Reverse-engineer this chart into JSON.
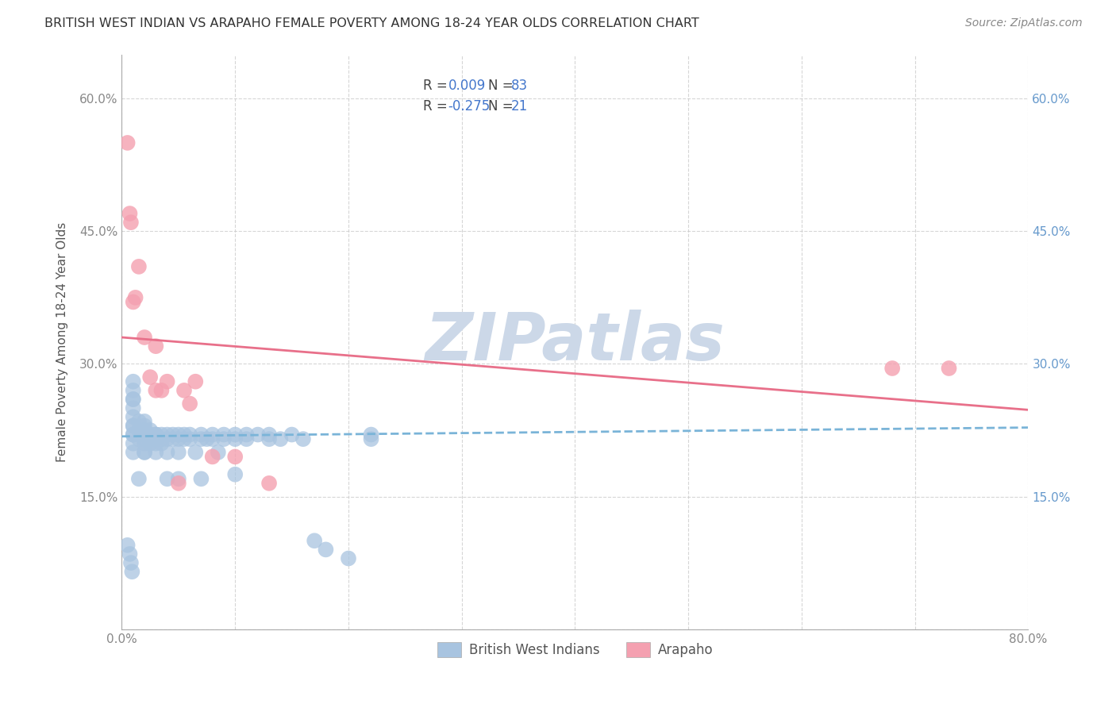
{
  "title": "BRITISH WEST INDIAN VS ARAPAHO FEMALE POVERTY AMONG 18-24 YEAR OLDS CORRELATION CHART",
  "source": "Source: ZipAtlas.com",
  "ylabel": "Female Poverty Among 18-24 Year Olds",
  "xlim": [
    0.0,
    0.8
  ],
  "ylim": [
    0.0,
    0.65
  ],
  "xticks": [
    0.0,
    0.1,
    0.2,
    0.3,
    0.4,
    0.5,
    0.6,
    0.7,
    0.8
  ],
  "yticks": [
    0.0,
    0.15,
    0.3,
    0.45,
    0.6
  ],
  "blue_color": "#a8c4e0",
  "pink_color": "#f4a0b0",
  "blue_line_color": "#7ab4d8",
  "pink_line_color": "#e8708a",
  "right_tick_color": "#6699cc",
  "watermark": "ZIPatlas",
  "watermark_color": "#ccd8e8",
  "blue_line_x": [
    0.0,
    0.8
  ],
  "blue_line_y": [
    0.218,
    0.228
  ],
  "pink_line_x": [
    0.0,
    0.8
  ],
  "pink_line_y": [
    0.33,
    0.248
  ],
  "blue_scatter_x": [
    0.005,
    0.007,
    0.008,
    0.009,
    0.01,
    0.01,
    0.01,
    0.01,
    0.01,
    0.01,
    0.01,
    0.01,
    0.01,
    0.01,
    0.01,
    0.01,
    0.015,
    0.015,
    0.015,
    0.015,
    0.02,
    0.02,
    0.02,
    0.02,
    0.02,
    0.02,
    0.02,
    0.02,
    0.02,
    0.025,
    0.025,
    0.025,
    0.025,
    0.03,
    0.03,
    0.03,
    0.03,
    0.03,
    0.03,
    0.03,
    0.035,
    0.035,
    0.035,
    0.04,
    0.04,
    0.04,
    0.04,
    0.045,
    0.045,
    0.05,
    0.05,
    0.05,
    0.05,
    0.055,
    0.055,
    0.06,
    0.06,
    0.065,
    0.07,
    0.07,
    0.07,
    0.075,
    0.08,
    0.08,
    0.085,
    0.09,
    0.09,
    0.1,
    0.1,
    0.1,
    0.11,
    0.11,
    0.12,
    0.13,
    0.13,
    0.14,
    0.15,
    0.16,
    0.17,
    0.18,
    0.2,
    0.22,
    0.22
  ],
  "blue_scatter_y": [
    0.095,
    0.085,
    0.075,
    0.065,
    0.22,
    0.23,
    0.24,
    0.25,
    0.26,
    0.26,
    0.27,
    0.28,
    0.2,
    0.21,
    0.22,
    0.23,
    0.215,
    0.225,
    0.235,
    0.17,
    0.22,
    0.21,
    0.2,
    0.225,
    0.23,
    0.235,
    0.215,
    0.22,
    0.2,
    0.22,
    0.21,
    0.215,
    0.225,
    0.22,
    0.215,
    0.21,
    0.22,
    0.2,
    0.215,
    0.22,
    0.215,
    0.22,
    0.21,
    0.2,
    0.215,
    0.22,
    0.17,
    0.215,
    0.22,
    0.215,
    0.2,
    0.22,
    0.17,
    0.215,
    0.22,
    0.215,
    0.22,
    0.2,
    0.215,
    0.22,
    0.17,
    0.215,
    0.215,
    0.22,
    0.2,
    0.215,
    0.22,
    0.215,
    0.22,
    0.175,
    0.215,
    0.22,
    0.22,
    0.215,
    0.22,
    0.215,
    0.22,
    0.215,
    0.1,
    0.09,
    0.08,
    0.22,
    0.215
  ],
  "pink_scatter_x": [
    0.005,
    0.007,
    0.008,
    0.01,
    0.012,
    0.015,
    0.02,
    0.025,
    0.03,
    0.03,
    0.035,
    0.04,
    0.05,
    0.055,
    0.06,
    0.065,
    0.08,
    0.1,
    0.13,
    0.68,
    0.73
  ],
  "pink_scatter_y": [
    0.55,
    0.47,
    0.46,
    0.37,
    0.375,
    0.41,
    0.33,
    0.285,
    0.27,
    0.32,
    0.27,
    0.28,
    0.165,
    0.27,
    0.255,
    0.28,
    0.195,
    0.195,
    0.165,
    0.295,
    0.295
  ],
  "figsize": [
    14.06,
    8.92
  ],
  "dpi": 100
}
